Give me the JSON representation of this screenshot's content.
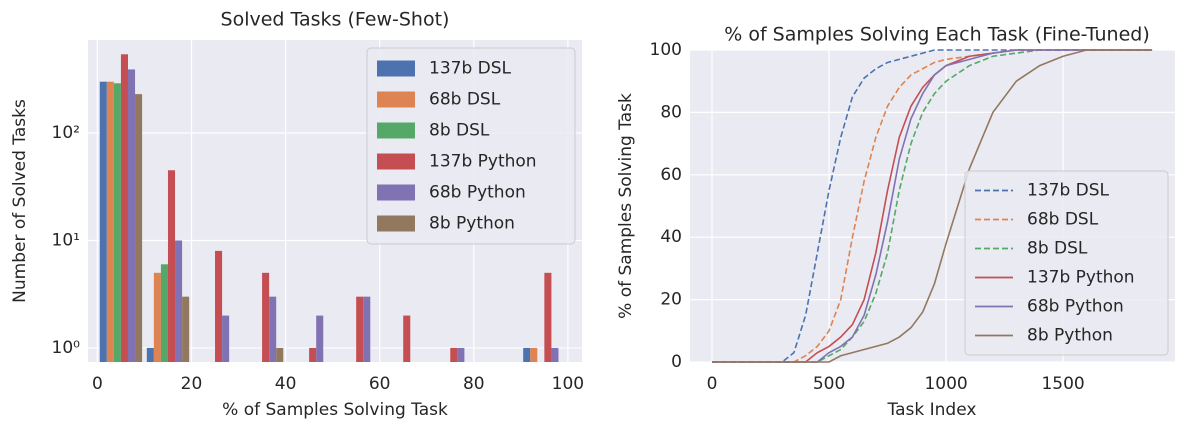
{
  "chart_data": [
    {
      "type": "histogram",
      "title": "Solved Tasks (Few-Shot)",
      "xlabel": "% of Samples Solving Task",
      "ylabel": "Number of Solved Tasks",
      "bins": [
        0,
        10,
        20,
        30,
        40,
        50,
        60,
        70,
        80,
        90,
        100
      ],
      "series": [
        {
          "name": "137b DSL",
          "color": "#4c72b0",
          "values": [
            300,
            1,
            0,
            0,
            0,
            0,
            0,
            0,
            0,
            1
          ]
        },
        {
          "name": "68b DSL",
          "color": "#dd8452",
          "values": [
            300,
            5,
            0,
            0,
            0,
            0,
            0,
            0,
            0,
            1
          ]
        },
        {
          "name": "8b DSL",
          "color": "#55a868",
          "values": [
            290,
            6,
            0,
            0,
            0,
            0,
            0,
            0,
            0,
            0
          ]
        },
        {
          "name": "137b Python",
          "color": "#c44e52",
          "values": [
            540,
            45,
            8,
            5,
            1,
            3,
            2,
            1,
            0,
            5
          ]
        },
        {
          "name": "68b Python",
          "color": "#8172b3",
          "values": [
            390,
            10,
            2,
            3,
            2,
            3,
            0,
            1,
            0,
            1
          ]
        },
        {
          "name": "8b Python",
          "color": "#937860",
          "values": [
            230,
            3,
            0,
            1,
            0,
            0,
            0,
            0,
            0,
            0
          ]
        }
      ],
      "xlim": [
        -2,
        103
      ],
      "xticks": [
        0,
        20,
        40,
        60,
        80,
        100
      ],
      "ylim": [
        0.74,
        733
      ],
      "yscale": "log",
      "yticks": [
        {
          "value": 1,
          "label": "10⁰"
        },
        {
          "value": 10,
          "label": "10¹"
        },
        {
          "value": 100,
          "label": "10²"
        }
      ],
      "grid": true,
      "legend": "upper right"
    },
    {
      "type": "line",
      "title": "% of Samples Solving Each Task (Fine-Tuned)",
      "xlabel": "Task Index",
      "ylabel": "% of Samples Solving Task",
      "x": [
        0,
        300,
        350,
        400,
        450,
        500,
        550,
        600,
        650,
        700,
        750,
        800,
        850,
        900,
        950,
        1000,
        1100,
        1200,
        1300,
        1400,
        1500,
        1600,
        1700,
        1800,
        1880
      ],
      "series": [
        {
          "name": "137b DSL",
          "color": "#4c72b0",
          "linestyle": "dashed",
          "values": [
            0,
            0,
            3,
            15,
            35,
            55,
            72,
            85,
            91,
            94,
            96,
            97,
            98,
            99,
            100,
            100,
            100,
            100,
            100,
            100,
            100,
            100,
            100,
            100,
            100
          ]
        },
        {
          "name": "68b DSL",
          "color": "#dd8452",
          "linestyle": "dashed",
          "values": [
            0,
            0,
            0,
            2,
            5,
            10,
            20,
            40,
            58,
            72,
            82,
            88,
            92,
            94,
            96,
            97,
            98,
            99,
            100,
            100,
            100,
            100,
            100,
            100,
            100
          ]
        },
        {
          "name": "8b DSL",
          "color": "#55a868",
          "linestyle": "dashed",
          "values": [
            0,
            0,
            0,
            0,
            0,
            2,
            4,
            8,
            13,
            22,
            35,
            55,
            70,
            80,
            86,
            90,
            95,
            98,
            99,
            100,
            100,
            100,
            100,
            100,
            100
          ]
        },
        {
          "name": "137b Python",
          "color": "#c44e52",
          "linestyle": "solid",
          "values": [
            0,
            0,
            0,
            0,
            3,
            5,
            8,
            12,
            20,
            35,
            55,
            72,
            82,
            88,
            92,
            95,
            98,
            99,
            100,
            100,
            100,
            100,
            100,
            100,
            100
          ]
        },
        {
          "name": "68b Python",
          "color": "#8172b3",
          "linestyle": "solid",
          "values": [
            0,
            0,
            0,
            0,
            0,
            3,
            5,
            8,
            15,
            28,
            45,
            65,
            78,
            86,
            92,
            95,
            97,
            99,
            100,
            100,
            100,
            100,
            100,
            100,
            100
          ]
        },
        {
          "name": "8b Python",
          "color": "#937860",
          "linestyle": "solid",
          "values": [
            0,
            0,
            0,
            0,
            0,
            0,
            2,
            3,
            4,
            5,
            6,
            8,
            11,
            16,
            25,
            38,
            62,
            80,
            90,
            95,
            98,
            100,
            100,
            100,
            100
          ]
        }
      ],
      "xlim": [
        -94,
        1978
      ],
      "xticks": [
        0,
        500,
        1000,
        1500
      ],
      "ylim": [
        0,
        100
      ],
      "yticks": [
        0,
        20,
        40,
        60,
        80,
        100
      ],
      "grid": true,
      "legend": "lower right"
    }
  ]
}
